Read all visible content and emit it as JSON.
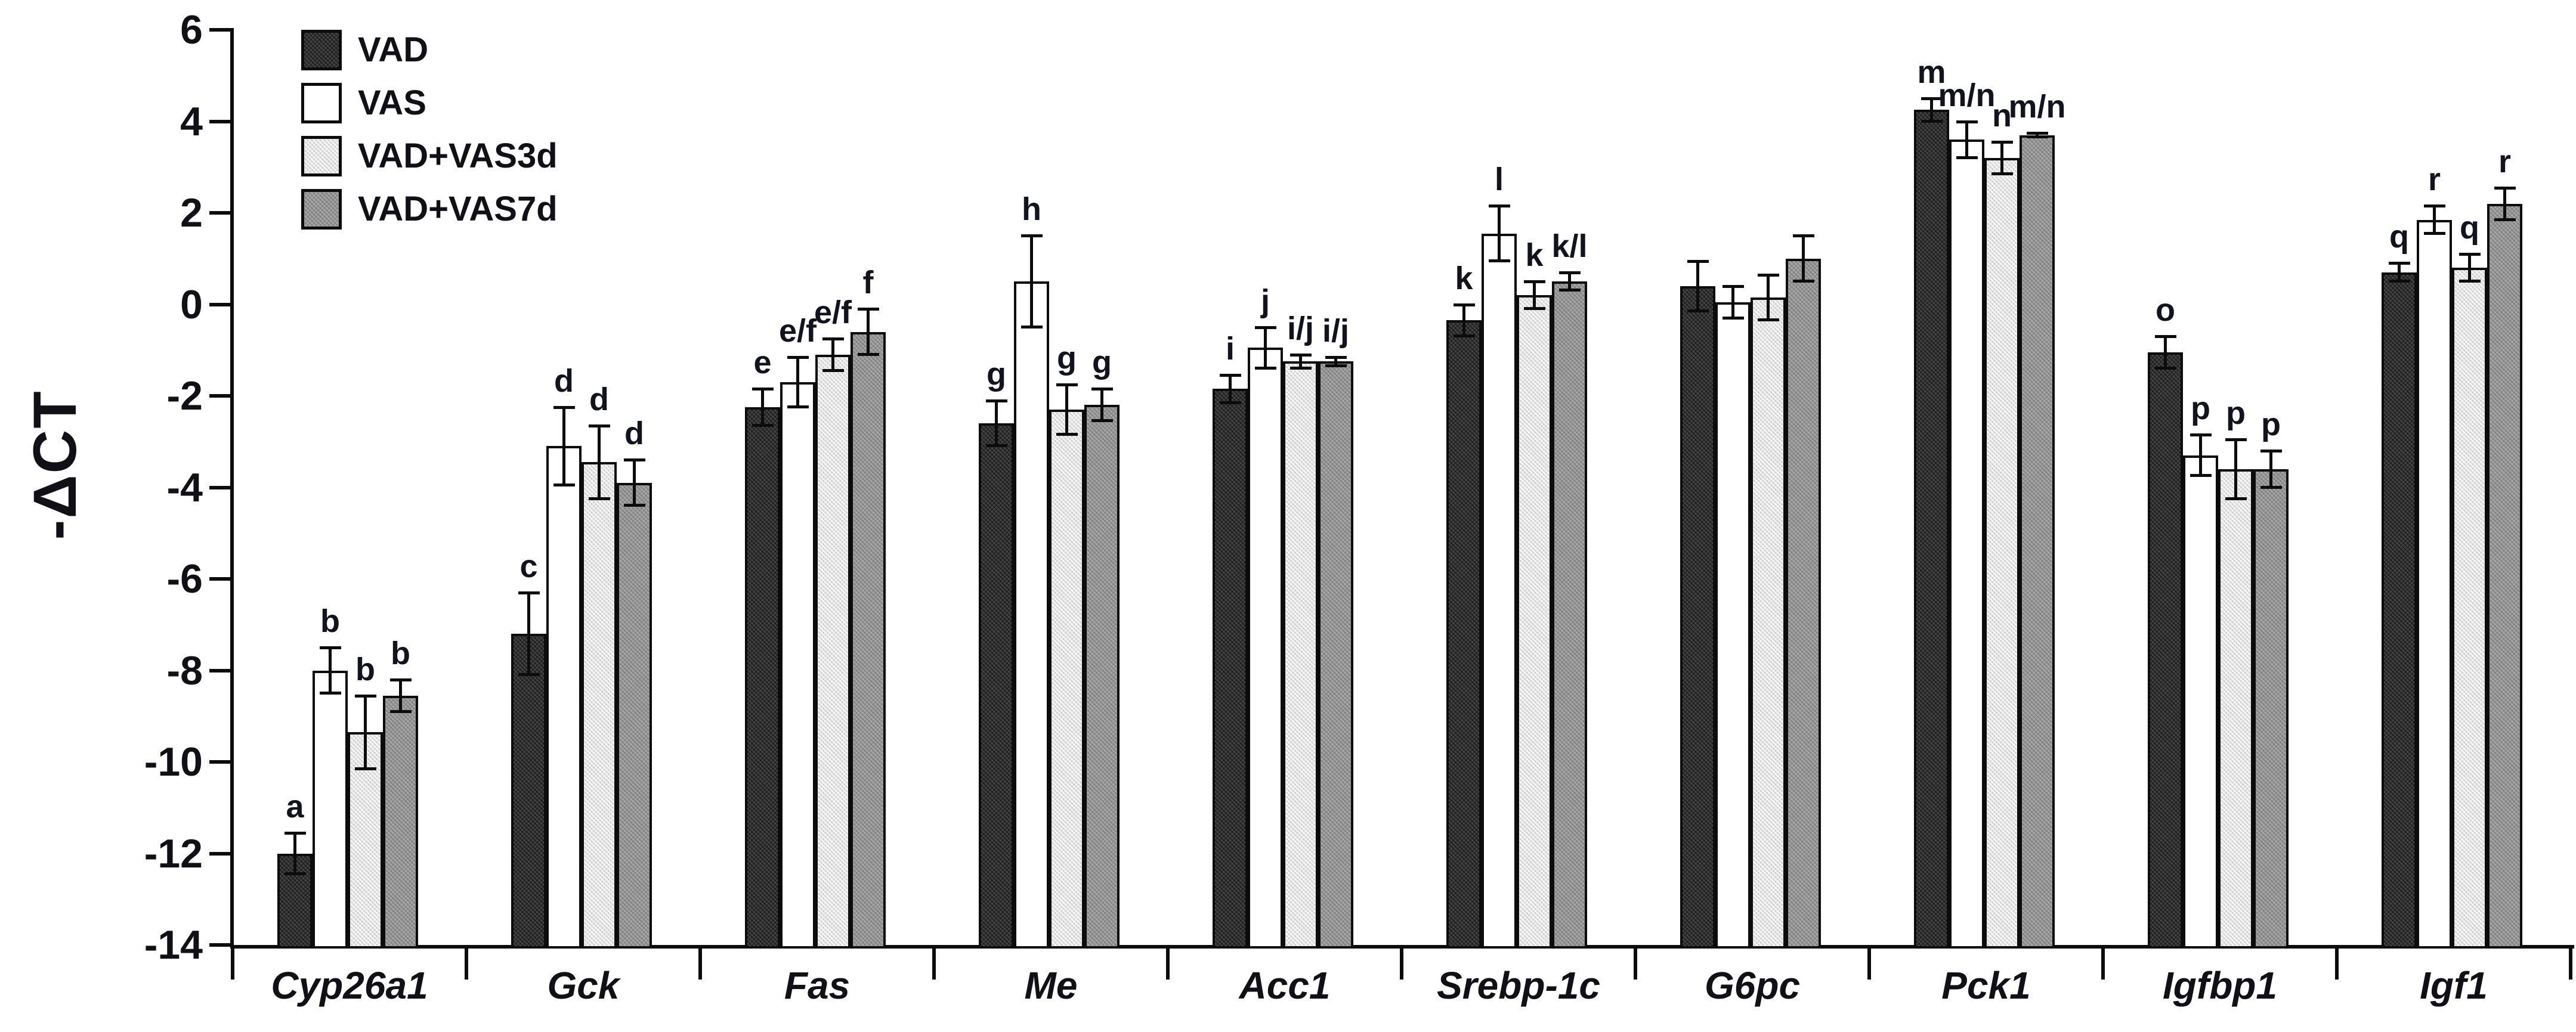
{
  "figure": {
    "y_axis_title": "-ΔCT"
  },
  "legend": {
    "items": [
      {
        "label": "VAD",
        "series_key": "vad"
      },
      {
        "label": "VAS",
        "series_key": "vas"
      },
      {
        "label": "VAD+VAS3d",
        "series_key": "vas3d"
      },
      {
        "label": "VAD+VAS7d",
        "series_key": "vas7d"
      }
    ]
  },
  "colors": {
    "vad": "#454545",
    "vas": "#ffffff",
    "vas3d": "#e2e2e2",
    "vas7d": "#9a9a9a",
    "axis": "#0c0c0c",
    "background": "#ffffff"
  },
  "chart_data": {
    "type": "bar",
    "title": "",
    "xlabel": "",
    "ylabel": "-ΔCT",
    "ylim": [
      -14,
      6
    ],
    "yticks": [
      6,
      4,
      2,
      0,
      -2,
      -4,
      -6,
      -8,
      -10,
      -12,
      -14
    ],
    "baseline": -14,
    "grid": false,
    "legend_position": "top-left",
    "categories": [
      "Cyp26a1",
      "Gck",
      "Fas",
      "Me",
      "Acc1",
      "Srebp-1c",
      "G6pc",
      "Pck1",
      "Igfbp1",
      "Igf1"
    ],
    "series": [
      {
        "name": "VAD",
        "key": "vad",
        "values": [
          -12.0,
          -7.2,
          -2.25,
          -2.6,
          -1.85,
          -0.35,
          0.4,
          4.25,
          -1.05,
          0.7
        ],
        "errors": [
          0.45,
          0.9,
          0.4,
          0.5,
          0.3,
          0.35,
          0.55,
          0.25,
          0.35,
          0.2
        ],
        "sig": [
          "a",
          "c",
          "e",
          "g",
          "i",
          "k",
          "",
          "m",
          "o",
          "q"
        ]
      },
      {
        "name": "VAS",
        "key": "vas",
        "values": [
          -8.0,
          -3.1,
          -1.7,
          0.5,
          -0.95,
          1.55,
          0.05,
          3.6,
          -3.3,
          1.85
        ],
        "errors": [
          0.5,
          0.85,
          0.55,
          1.0,
          0.45,
          0.6,
          0.35,
          0.4,
          0.45,
          0.3
        ],
        "sig": [
          "b",
          "d",
          "e/f",
          "h",
          "j",
          "l",
          "",
          "m/n",
          "p",
          "r"
        ]
      },
      {
        "name": "VAD+VAS3d",
        "key": "vas3d",
        "values": [
          -9.35,
          -3.45,
          -1.1,
          -2.3,
          -1.25,
          0.2,
          0.15,
          3.2,
          -3.6,
          0.8
        ],
        "errors": [
          0.8,
          0.8,
          0.35,
          0.55,
          0.15,
          0.3,
          0.5,
          0.35,
          0.65,
          0.3
        ],
        "sig": [
          "b",
          "d",
          "e/f",
          "g",
          "i/j",
          "k",
          "",
          "n",
          "p",
          "q"
        ]
      },
      {
        "name": "VAD+VAS7d",
        "key": "vas7d",
        "values": [
          -8.55,
          -3.9,
          -0.6,
          -2.2,
          -1.25,
          0.5,
          1.0,
          3.7,
          -3.6,
          2.2
        ],
        "errors": [
          0.35,
          0.5,
          0.5,
          0.35,
          0.1,
          0.2,
          0.5,
          0.05,
          0.4,
          0.35
        ],
        "sig": [
          "b",
          "d",
          "f",
          "g",
          "i/j",
          "k/l",
          "",
          "m/n",
          "p",
          "r"
        ]
      }
    ]
  }
}
